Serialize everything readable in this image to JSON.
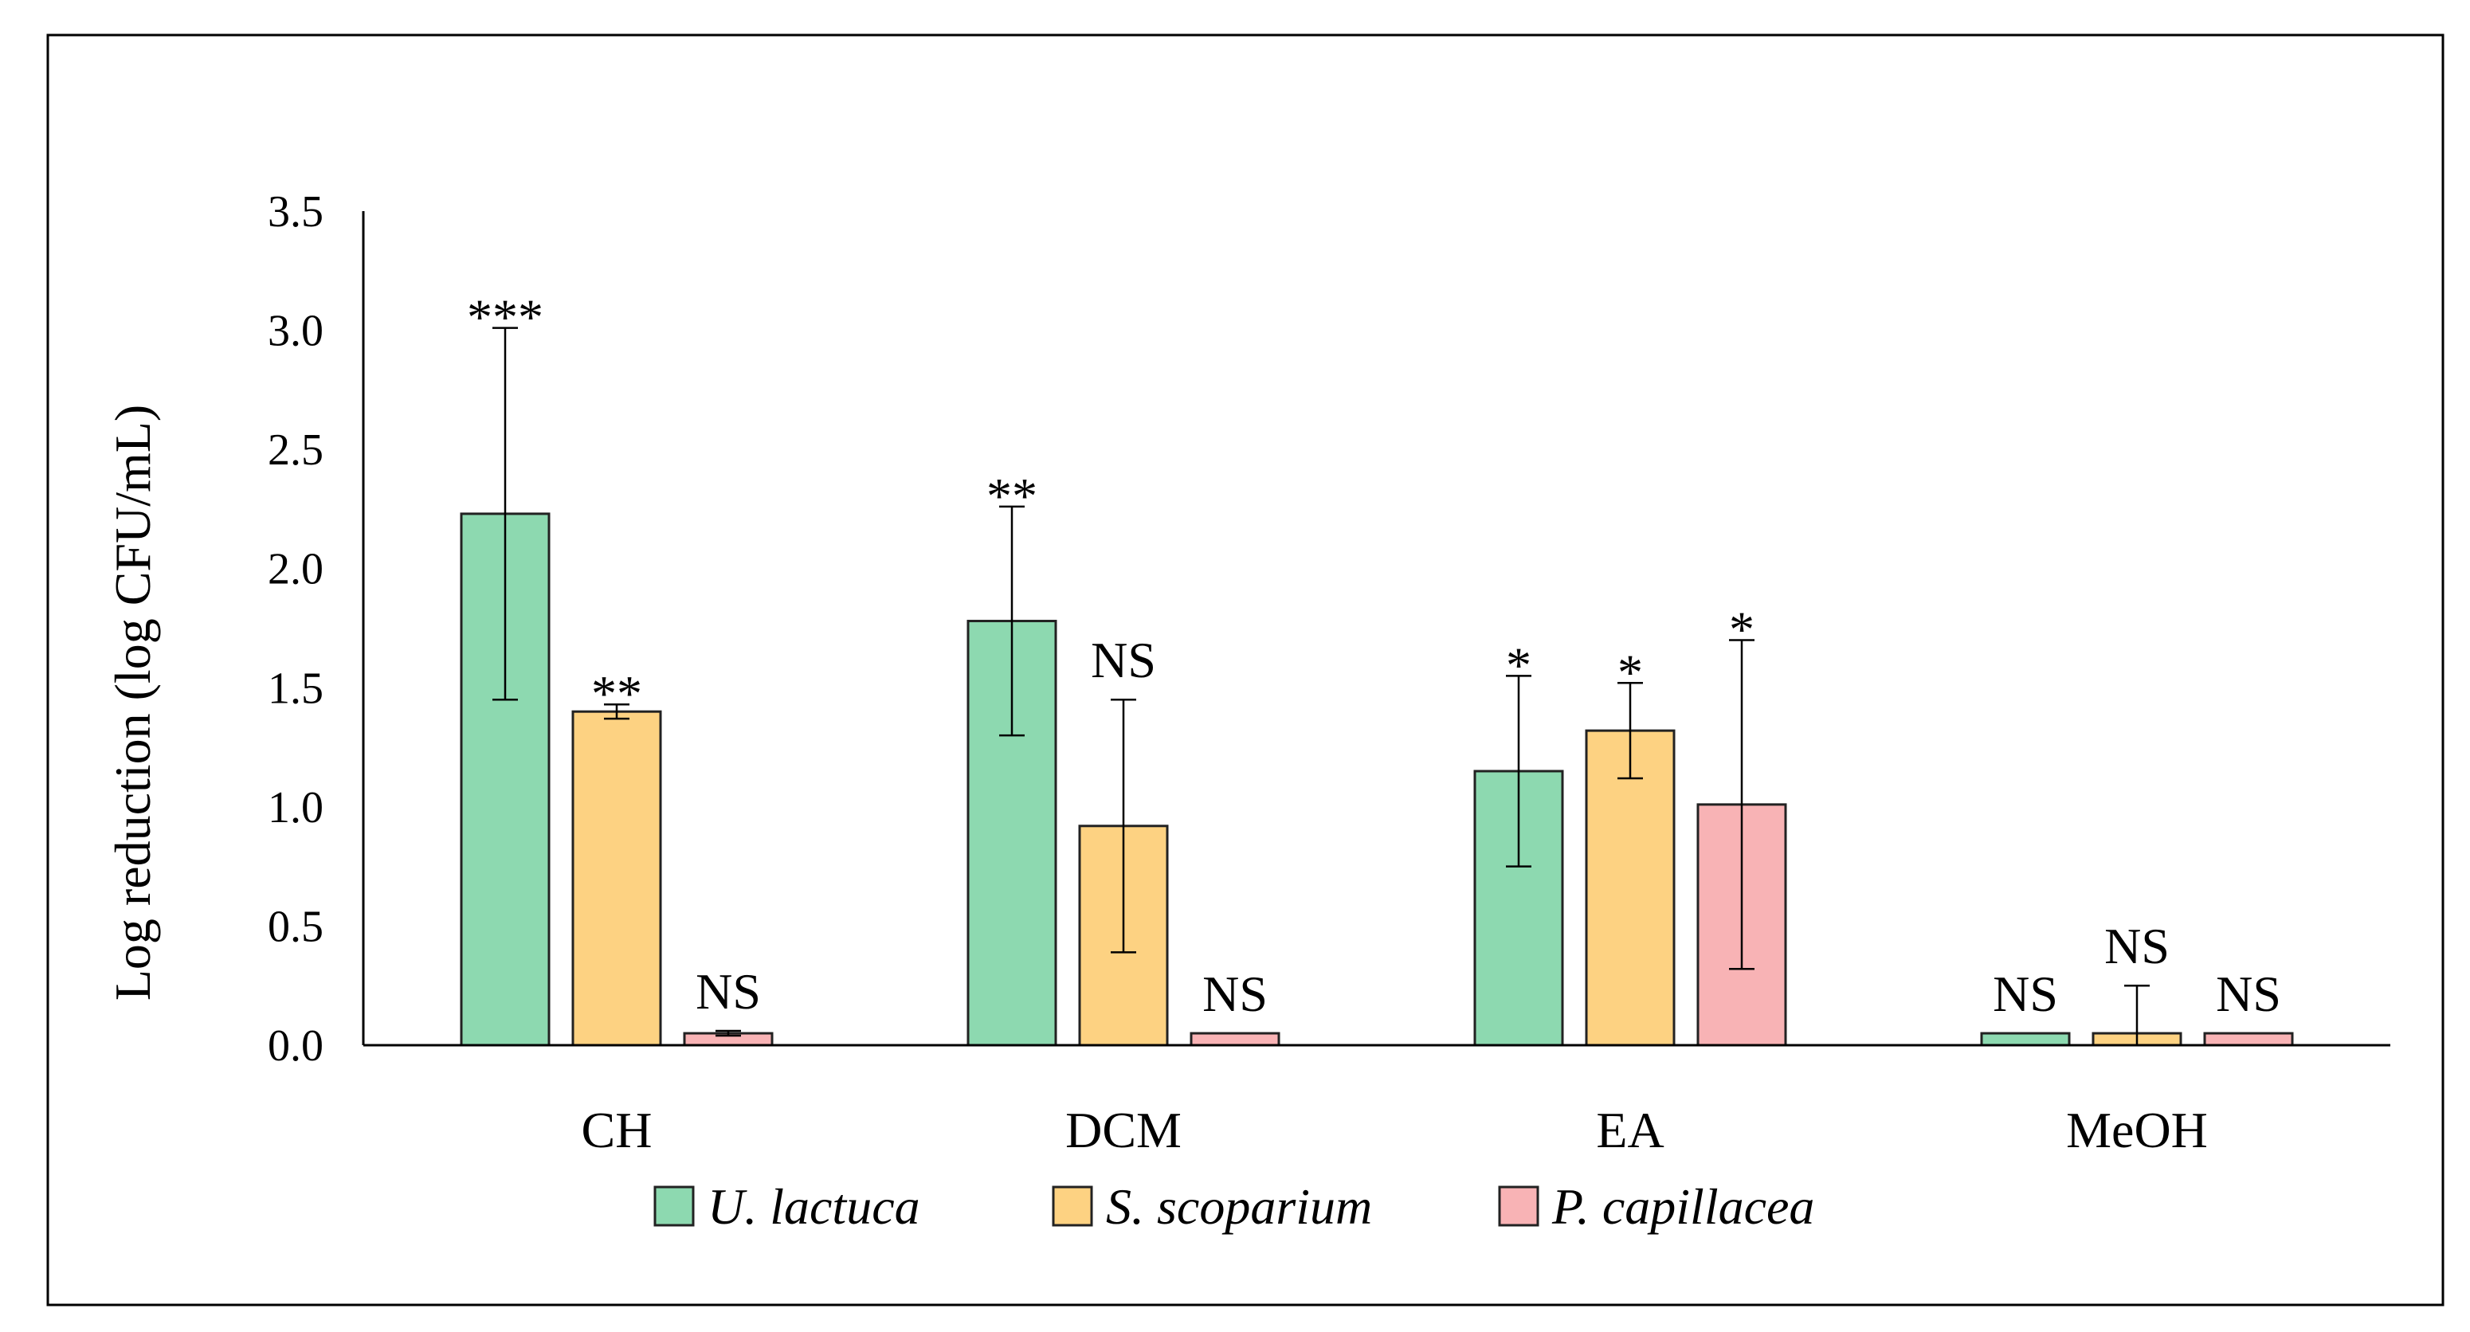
{
  "chart_data": {
    "type": "bar",
    "title": "",
    "xlabel": "",
    "ylabel": "Log reduction (log CFU/mL)",
    "ylim": [
      0,
      3.5
    ],
    "yticks": [
      "0.0",
      "0.5",
      "1.0",
      "1.5",
      "2.0",
      "2.5",
      "3.0",
      "3.5"
    ],
    "categories": [
      "CH",
      "DCM",
      "EA",
      "MeOH"
    ],
    "legend_position": "bottom",
    "series": [
      {
        "name": "U. lactuca",
        "color": "#8dd9b0",
        "values": [
          2.23,
          1.78,
          1.15,
          0.05
        ],
        "errors": [
          0.78,
          0.48,
          0.4,
          0.0
        ],
        "significance": [
          "***",
          "**",
          "*",
          "NS"
        ]
      },
      {
        "name": "S. scoparium",
        "color": "#fdd282",
        "values": [
          1.4,
          0.92,
          1.32,
          0.05
        ],
        "errors": [
          0.03,
          0.53,
          0.2,
          0.2
        ],
        "significance": [
          "**",
          "NS",
          "*",
          "NS"
        ]
      },
      {
        "name": "P. capillacea",
        "color": "#f8b3b5",
        "values": [
          0.05,
          0.05,
          1.01,
          0.05
        ],
        "errors": [
          0.01,
          0.0,
          0.69,
          0.0
        ],
        "significance": [
          "NS",
          "NS",
          "*",
          "NS"
        ]
      }
    ]
  }
}
